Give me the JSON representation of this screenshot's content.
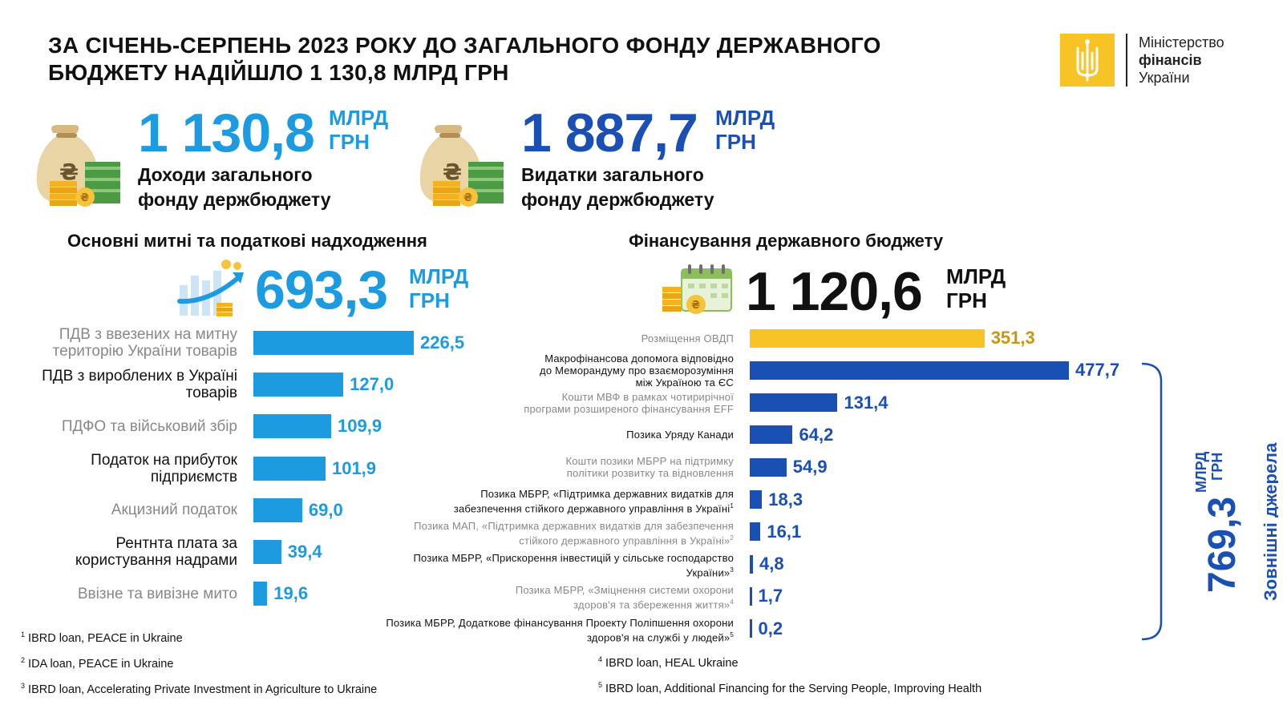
{
  "title": "ЗА СІЧЕНЬ-СЕРПЕНЬ  2023 РОКУ ДО ЗАГАЛЬНОГО ФОНДУ ДЕРЖАВНОГО БЮДЖЕТУ НАДІЙШЛО 1 130,8 МЛРД ГРН",
  "logo": {
    "line1": "Міністерство",
    "line2": "фінансів",
    "line3": "України",
    "icon": "trident-icon"
  },
  "kpi_income": {
    "value": "1 130,8",
    "unit1": "МЛРД",
    "unit2": "ГРН",
    "label1": "Доходи загального",
    "label2": "фонду держбюджету",
    "icon": "money-bag-icon"
  },
  "kpi_expense": {
    "value": "1 887,7",
    "unit1": "МЛРД",
    "unit2": "ГРН",
    "label1": "Видатки загального",
    "label2": "фонду держбюджету",
    "icon": "money-bag-icon"
  },
  "section_tax": {
    "title": "Основні митні та податкові надходження",
    "value": "693,3",
    "unit1": "МЛРД",
    "unit2": "ГРН",
    "icon": "growth-chart-icon"
  },
  "section_fin": {
    "title": "Фінансування державного бюджету",
    "value": "1 120,6",
    "unit1": "МЛРД",
    "unit2": "ГРН",
    "icon": "calendar-coins-icon"
  },
  "external": {
    "value": "769,3",
    "unit1": "МЛРД",
    "unit2": "ГРН",
    "label": "Зовнішні джерела"
  },
  "colors": {
    "light_blue": "#1d9be0",
    "dark_blue": "#1a4fb4",
    "yellow": "#f7c325",
    "grey_text": "#888888"
  },
  "chart_data": [
    {
      "type": "bar",
      "orientation": "horizontal",
      "title": "Основні митні та податкові надходження",
      "categories": [
        "ПДВ з ввезених на митну територію України товарів",
        "ПДВ з вироблених в Україні товарів",
        "ПДФО та військовий збір",
        "Податок на прибуток підприємств",
        "Акцизний податок",
        "Рентнта плата за користування надрами",
        "Ввізне та вивізне мито"
      ],
      "category_lines": [
        [
          "ПДВ з ввезених на митну",
          "територію України товарів"
        ],
        [
          "ПДВ з вироблених в Україні",
          "товарів"
        ],
        [
          "ПДФО та військовий збір"
        ],
        [
          "Податок на прибуток",
          "підприємств"
        ],
        [
          "Акцизний податок"
        ],
        [
          "Рентнта плата за",
          "користування надрами"
        ],
        [
          "Ввізне та вивізне мито"
        ]
      ],
      "values": [
        226.5,
        127.0,
        109.9,
        101.9,
        69.0,
        39.4,
        19.6
      ],
      "value_labels": [
        "226,5",
        "127,0",
        "109,9",
        "101,9",
        "69,0",
        "39,4",
        "19,6"
      ],
      "label_tone": [
        "grey",
        "dark",
        "grey",
        "dark",
        "grey",
        "dark",
        "grey"
      ]
    },
    {
      "type": "bar",
      "orientation": "horizontal",
      "title": "Фінансування державного бюджету",
      "categories": [
        "Розміщення ОВДП",
        "Макрофінансова допомога відповідно до Меморандуму про взаєморозуміння між Україною та ЄС",
        "Кошти МВФ в рамках чотирирічної програми розширеного фінансування EFF",
        "Позика Уряду Канади",
        "Кошти позики МБРР на підтримку політики розвитку та відновлення",
        "Позика МБРР, «Підтримка державних видатків для забезпечення стійкого державного управління в Україні»",
        "Позика МАП, «Підтримка державних видатків для забезпечення стійкого державного управління в Україні»",
        "Позика МБРР, «Прискорення інвестицій у сільське господарство України»",
        "Позика МБРР, «Зміцнення системи охорони здоров'я та збереження життя»",
        "Позика МБРР, Додаткове фінансування Проекту Поліпшення охорони здоров'я на службі у людей»"
      ],
      "category_lines": [
        [
          "Розміщення ОВДП"
        ],
        [
          "Макрофінансова допомога відповідно",
          "до Меморандуму про взаєморозуміння",
          "між Україною та ЄС"
        ],
        [
          "Кошти МВФ в рамках чотирирічної",
          "програми розширеного фінансування EFF"
        ],
        [
          "Позика Уряду Канади"
        ],
        [
          "Кошти позики МБРР на підтримку",
          "політики розвитку та відновлення"
        ],
        [
          "Позика МБРР, «Підтримка державних видатків для",
          "забезпечення стійкого державного управління в Україні"
        ],
        [
          "Позика МАП, «Підтримка державних видатків для забезпечення",
          "стійкого державного управління в Україні»"
        ],
        [
          "Позика МБРР, «Прискорення інвестицій у сільське господарство",
          "України»"
        ],
        [
          "Позика МБРР, «Зміцнення системи охорони",
          "здоров'я та збереження життя»"
        ],
        [
          "Позика МБРР, Додаткове фінансування Проекту Поліпшення охорони",
          "здоров'я на службі у людей»"
        ]
      ],
      "footnote_marks": [
        "",
        "",
        "",
        "",
        "",
        "1",
        "2",
        "3",
        "4",
        "5"
      ],
      "values": [
        351.3,
        477.7,
        131.4,
        64.2,
        54.9,
        18.3,
        16.1,
        4.8,
        1.7,
        0.2
      ],
      "value_labels": [
        "351,3",
        "477,7",
        "131,4",
        "64,2",
        "54,9",
        "18,3",
        "16,1",
        "4,8",
        "1,7",
        "0,2"
      ],
      "bar_colors": [
        "#f7c325",
        "#1a4fb4",
        "#1a4fb4",
        "#1a4fb4",
        "#1a4fb4",
        "#1a4fb4",
        "#1a4fb4",
        "#1a4fb4",
        "#1a4fb4",
        "#1a4fb4"
      ],
      "label_tone": [
        "grey",
        "dark",
        "grey",
        "dark",
        "grey",
        "dark",
        "grey",
        "dark",
        "grey",
        "dark"
      ]
    }
  ],
  "footnotes_left": [
    {
      "mark": "1",
      "text": "IBRD loan, PEACE in Ukraine"
    },
    {
      "mark": "2",
      "text": "IDA loan, PEACE in Ukraine"
    },
    {
      "mark": "3",
      "text": "IBRD loan, Accelerating Private Investment in Agriculture to Ukraine"
    }
  ],
  "footnotes_right": [
    {
      "mark": "4",
      "text": "IBRD loan, HEAL Ukraine"
    },
    {
      "mark": "5",
      "text": "IBRD loan, Additional Financing for the Serving People, Improving Health"
    }
  ]
}
